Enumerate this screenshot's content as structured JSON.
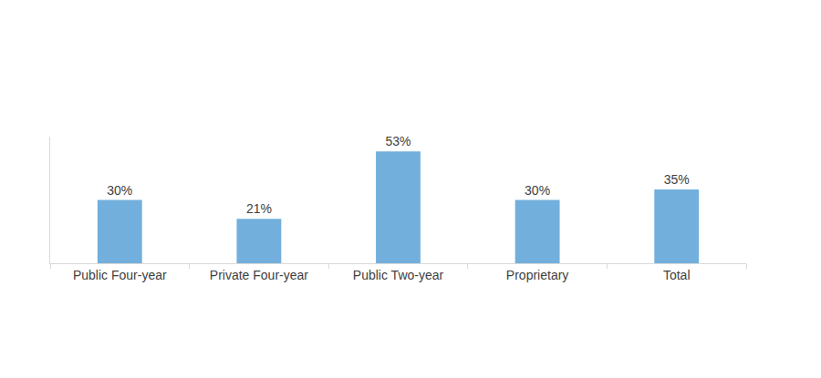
{
  "chart_data": {
    "type": "bar",
    "categories": [
      "Public Four-year",
      "Private Four-year",
      "Public Two-year",
      "Proprietary",
      "Total"
    ],
    "values": [
      30,
      21,
      53,
      30,
      35
    ],
    "value_labels": [
      "30%",
      "21%",
      "53%",
      "30%",
      "35%"
    ],
    "color": "#72afdc",
    "ylim": [
      0,
      60
    ],
    "grid": false,
    "data_labels": true,
    "tick_labels": "x"
  }
}
